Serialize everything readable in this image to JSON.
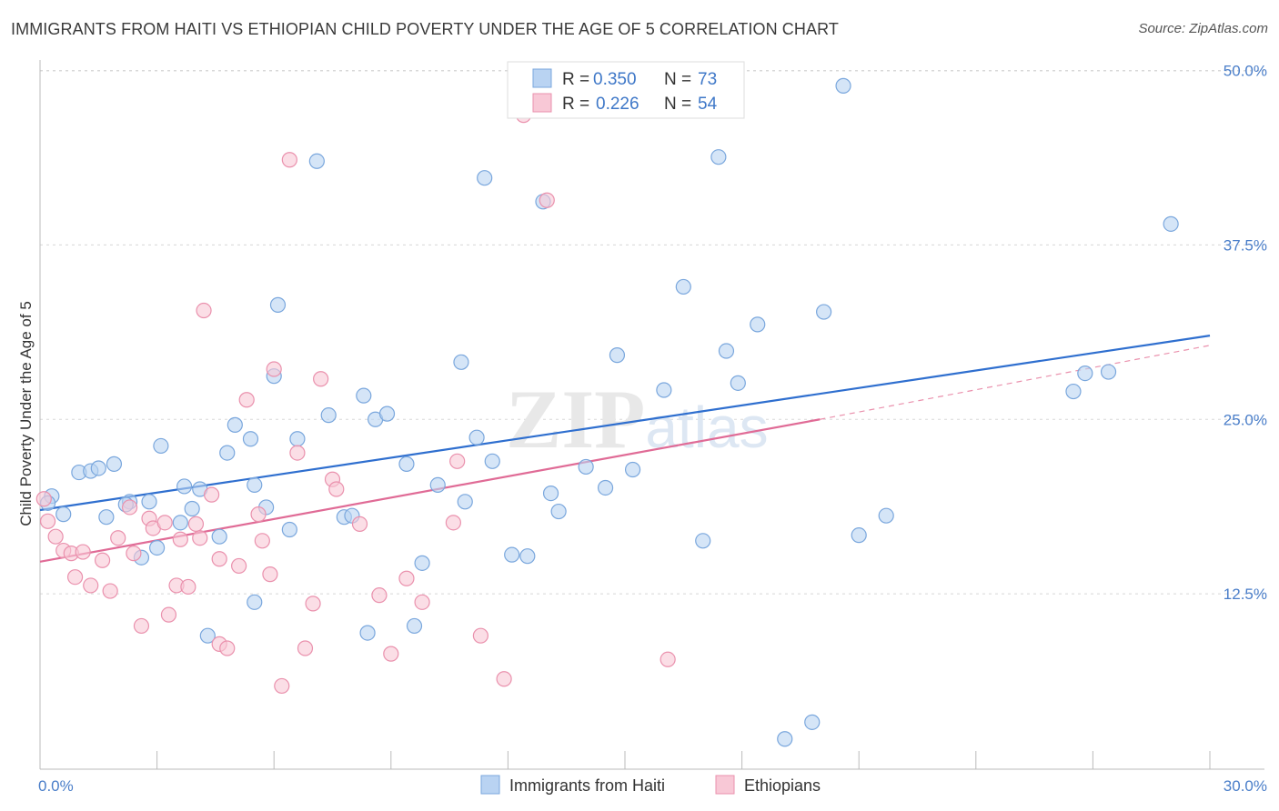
{
  "title": "IMMIGRANTS FROM HAITI VS ETHIOPIAN CHILD POVERTY UNDER THE AGE OF 5 CORRELATION CHART",
  "source": "Source: ZipAtlas.com",
  "watermark": "ZIPatlas",
  "legend_top": [
    {
      "r_label": "R =",
      "r_value": "0.350",
      "n_label": "N =",
      "n_value": "73"
    },
    {
      "r_label": "R =",
      "r_value": "0.226",
      "n_label": "N =",
      "n_value": "54"
    }
  ],
  "legend_bottom": [
    "Immigrants from Haiti",
    "Ethiopians"
  ],
  "colors": {
    "blue_fill": "#b9d3f2",
    "blue_stroke": "#7aa7dd",
    "blue_line": "#2f6fcf",
    "pink_fill": "#f8c8d6",
    "pink_stroke": "#ea91ad",
    "pink_line": "#e06b96",
    "axis_text": "#4a7ec9",
    "grid": "#d8d8d8"
  },
  "chart_data": {
    "type": "scatter",
    "ylabel": "Child Poverty Under the Age of 5",
    "xlim": [
      0,
      30
    ],
    "ylim": [
      0,
      50
    ],
    "x_tick_labels": [
      "0.0%",
      "30.0%"
    ],
    "y_ticks": [
      12.5,
      25.0,
      37.5,
      50.0
    ],
    "y_tick_labels": [
      "12.5%",
      "25.0%",
      "37.5%",
      "50.0%"
    ],
    "grid": true,
    "legend_placement": "top-center",
    "series": [
      {
        "name": "Immigrants from Haiti",
        "r": 0.35,
        "n": 73,
        "trend": {
          "x0": 0,
          "y0": 18.5,
          "x1": 30,
          "y1": 31.0
        },
        "points": [
          [
            0.3,
            19.5
          ],
          [
            0.2,
            19.0
          ],
          [
            0.6,
            18.2
          ],
          [
            1.0,
            21.2
          ],
          [
            1.3,
            21.3
          ],
          [
            1.5,
            21.5
          ],
          [
            1.9,
            21.8
          ],
          [
            1.7,
            18.0
          ],
          [
            2.3,
            19.1
          ],
          [
            2.2,
            18.9
          ],
          [
            2.8,
            19.1
          ],
          [
            3.1,
            23.1
          ],
          [
            2.6,
            15.1
          ],
          [
            3.0,
            15.8
          ],
          [
            3.6,
            17.6
          ],
          [
            3.7,
            20.2
          ],
          [
            3.9,
            18.6
          ],
          [
            4.1,
            20.0
          ],
          [
            4.6,
            16.6
          ],
          [
            4.8,
            22.6
          ],
          [
            5.0,
            24.6
          ],
          [
            5.4,
            23.6
          ],
          [
            5.5,
            20.3
          ],
          [
            5.8,
            18.7
          ],
          [
            6.0,
            28.1
          ],
          [
            6.1,
            33.2
          ],
          [
            6.4,
            17.1
          ],
          [
            6.6,
            23.6
          ],
          [
            7.1,
            43.5
          ],
          [
            7.4,
            25.3
          ],
          [
            7.8,
            18.0
          ],
          [
            8.0,
            18.1
          ],
          [
            8.3,
            26.7
          ],
          [
            8.6,
            25.0
          ],
          [
            8.9,
            25.4
          ],
          [
            9.4,
            21.8
          ],
          [
            9.6,
            10.2
          ],
          [
            9.8,
            14.7
          ],
          [
            10.2,
            20.3
          ],
          [
            10.8,
            29.1
          ],
          [
            10.9,
            19.1
          ],
          [
            11.2,
            23.7
          ],
          [
            11.4,
            42.3
          ],
          [
            11.6,
            22.0
          ],
          [
            12.1,
            15.3
          ],
          [
            12.5,
            15.2
          ],
          [
            12.9,
            40.6
          ],
          [
            13.1,
            19.7
          ],
          [
            13.3,
            18.4
          ],
          [
            14.0,
            21.6
          ],
          [
            14.5,
            20.1
          ],
          [
            14.8,
            29.6
          ],
          [
            15.2,
            21.4
          ],
          [
            16.0,
            27.1
          ],
          [
            16.5,
            34.5
          ],
          [
            17.0,
            16.3
          ],
          [
            17.4,
            43.8
          ],
          [
            17.6,
            29.9
          ],
          [
            17.9,
            27.6
          ],
          [
            18.4,
            31.8
          ],
          [
            19.1,
            2.1
          ],
          [
            19.8,
            3.3
          ],
          [
            20.1,
            32.7
          ],
          [
            20.6,
            48.9
          ],
          [
            21.0,
            16.7
          ],
          [
            21.7,
            18.1
          ],
          [
            26.5,
            27.0
          ],
          [
            26.8,
            28.3
          ],
          [
            27.4,
            28.4
          ],
          [
            29.0,
            39.0
          ],
          [
            8.4,
            9.7
          ],
          [
            4.3,
            9.5
          ],
          [
            5.5,
            11.9
          ]
        ]
      },
      {
        "name": "Ethiopians",
        "r": 0.226,
        "n": 54,
        "trend": {
          "x0": 0,
          "y0": 14.8,
          "x1": 20.0,
          "y1": 25.0
        },
        "trend_dashed_ext": {
          "x0": 20.0,
          "y0": 25.0,
          "x1": 30,
          "y1": 30.3
        },
        "points": [
          [
            0.1,
            19.3
          ],
          [
            0.2,
            17.7
          ],
          [
            0.4,
            16.6
          ],
          [
            0.6,
            15.6
          ],
          [
            0.8,
            15.4
          ],
          [
            0.9,
            13.7
          ],
          [
            1.1,
            15.5
          ],
          [
            1.3,
            13.1
          ],
          [
            1.6,
            14.9
          ],
          [
            1.8,
            12.7
          ],
          [
            2.0,
            16.5
          ],
          [
            2.3,
            18.7
          ],
          [
            2.4,
            15.4
          ],
          [
            2.6,
            10.2
          ],
          [
            2.8,
            17.9
          ],
          [
            2.9,
            17.2
          ],
          [
            3.2,
            17.6
          ],
          [
            3.3,
            11.0
          ],
          [
            3.5,
            13.1
          ],
          [
            3.6,
            16.4
          ],
          [
            3.8,
            13.0
          ],
          [
            4.1,
            16.5
          ],
          [
            4.0,
            17.5
          ],
          [
            4.2,
            32.8
          ],
          [
            4.4,
            19.6
          ],
          [
            4.6,
            8.9
          ],
          [
            4.8,
            8.6
          ],
          [
            5.1,
            14.5
          ],
          [
            5.3,
            26.4
          ],
          [
            5.6,
            18.2
          ],
          [
            5.7,
            16.3
          ],
          [
            5.9,
            13.9
          ],
          [
            6.0,
            28.6
          ],
          [
            6.2,
            5.9
          ],
          [
            6.4,
            43.6
          ],
          [
            6.6,
            22.6
          ],
          [
            6.8,
            8.6
          ],
          [
            7.0,
            11.8
          ],
          [
            7.2,
            27.9
          ],
          [
            7.5,
            20.7
          ],
          [
            7.6,
            20.0
          ],
          [
            8.2,
            17.5
          ],
          [
            8.7,
            12.4
          ],
          [
            9.0,
            8.2
          ],
          [
            9.4,
            13.6
          ],
          [
            9.8,
            11.9
          ],
          [
            10.7,
            22.0
          ],
          [
            10.6,
            17.6
          ],
          [
            11.3,
            9.5
          ],
          [
            11.9,
            6.4
          ],
          [
            12.4,
            46.8
          ],
          [
            13.0,
            40.7
          ],
          [
            16.1,
            7.8
          ],
          [
            4.6,
            15.0
          ]
        ]
      }
    ]
  }
}
